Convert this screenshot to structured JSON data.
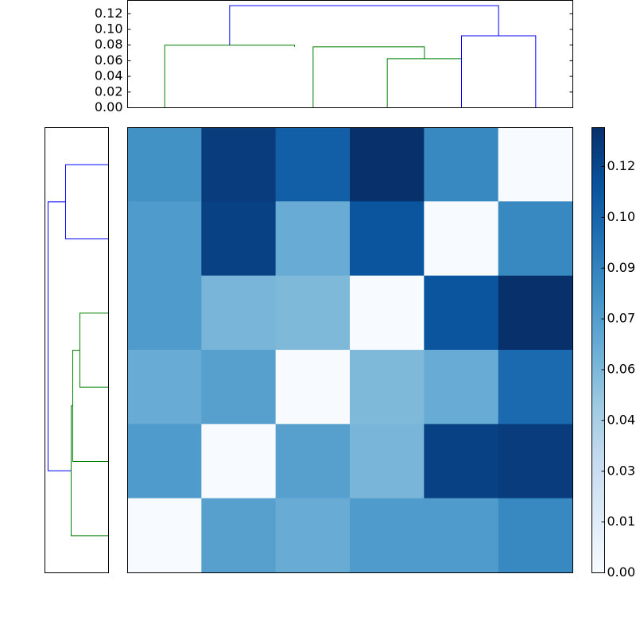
{
  "chart_data": [
    {
      "type": "dendrogram",
      "orientation": "top",
      "xlim": [
        0,
        60
      ],
      "ylim": [
        0,
        0.137
      ],
      "yticks": [
        {
          "value": 0,
          "label": "0.00"
        },
        {
          "value": 0.02,
          "label": "0.02"
        },
        {
          "value": 0.04,
          "label": "0.04"
        },
        {
          "value": 0.06,
          "label": "0.06"
        },
        {
          "value": 0.08,
          "label": "0.08"
        },
        {
          "value": 0.1,
          "label": "0.10"
        },
        {
          "value": 0.12,
          "label": "0.12"
        }
      ],
      "links": [
        {
          "color": "#008000",
          "icoord": [
            35,
            35,
            45,
            45
          ],
          "dcoord": [
            0,
            0.0626,
            0.0626,
            0
          ]
        },
        {
          "color": "#008000",
          "icoord": [
            25,
            25,
            40,
            40
          ],
          "dcoord": [
            0,
            0.0778,
            0.0778,
            0.0626
          ]
        },
        {
          "color": "#008000",
          "icoord": [
            5,
            5,
            22.5,
            22.5
          ],
          "dcoord": [
            0,
            0.0798,
            0.0798,
            0.0778
          ]
        },
        {
          "color": "#0000ff",
          "icoord": [
            45,
            45,
            55,
            55
          ],
          "dcoord": [
            0,
            0.0919,
            0.0919,
            0
          ]
        },
        {
          "color": "#0000ff",
          "icoord": [
            13.75,
            13.75,
            50,
            50
          ],
          "dcoord": [
            0.0798,
            0.1303,
            0.1303,
            0.0919
          ]
        }
      ]
    },
    {
      "type": "dendrogram",
      "orientation": "left",
      "ylim": [
        0,
        60
      ],
      "xlim": [
        0.137,
        0
      ],
      "links": [
        {
          "color": "#008000",
          "icoord": [
            25,
            25,
            35,
            35
          ],
          "dcoord": [
            0,
            0.0617,
            0.0617,
            0
          ]
        },
        {
          "color": "#008000",
          "icoord": [
            15,
            15,
            30,
            30
          ],
          "dcoord": [
            0,
            0.077,
            0.077,
            0.0617
          ]
        },
        {
          "color": "#008000",
          "icoord": [
            5,
            5,
            22.5,
            22.5
          ],
          "dcoord": [
            0,
            0.0805,
            0.0805,
            0.077
          ]
        },
        {
          "color": "#0000ff",
          "icoord": [
            45,
            45,
            55,
            55
          ],
          "dcoord": [
            0,
            0.0925,
            0.0925,
            0
          ]
        },
        {
          "color": "#0000ff",
          "icoord": [
            13.75,
            13.75,
            50,
            50
          ],
          "dcoord": [
            0.0805,
            0.1303,
            0.1303,
            0.0925
          ]
        }
      ]
    },
    {
      "type": "heatmap",
      "colormap": "Blues",
      "clim": [
        0,
        0.128
      ],
      "values": [
        [
          0.08,
          0.122,
          0.105,
          0.128,
          0.085,
          0
        ],
        [
          0.075,
          0.12,
          0.065,
          0.11,
          0,
          0.085
        ],
        [
          0.075,
          0.06,
          0.058,
          0,
          0.11,
          0.128
        ],
        [
          0.065,
          0.072,
          0,
          0.058,
          0.065,
          0.1
        ],
        [
          0.075,
          0,
          0.072,
          0.06,
          0.12,
          0.122
        ],
        [
          0,
          0.072,
          0.065,
          0.075,
          0.075,
          0.085
        ]
      ],
      "colorbar_ticks": [
        {
          "value": 0,
          "label": "0.00"
        },
        {
          "value": 0.0146,
          "label": "0.01"
        },
        {
          "value": 0.0292,
          "label": "0.03"
        },
        {
          "value": 0.0438,
          "label": "0.04"
        },
        {
          "value": 0.0584,
          "label": "0.06"
        },
        {
          "value": 0.073,
          "label": "0.07"
        },
        {
          "value": 0.0876,
          "label": "0.09"
        },
        {
          "value": 0.1022,
          "label": "0.10"
        },
        {
          "value": 0.1168,
          "label": "0.12"
        }
      ]
    }
  ]
}
